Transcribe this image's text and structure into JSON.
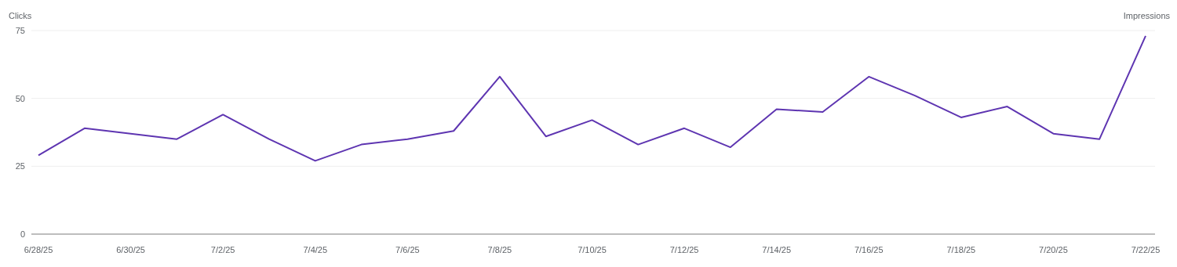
{
  "chart_data": {
    "type": "line",
    "ylabel": "Clicks",
    "y2label": "Impressions",
    "categories": [
      "6/28/25",
      null,
      "6/30/25",
      null,
      "7/2/25",
      null,
      "7/4/25",
      null,
      "7/6/25",
      null,
      "7/8/25",
      null,
      "7/10/25",
      null,
      "7/12/25",
      null,
      "7/14/25",
      null,
      "7/16/25",
      null,
      "7/18/25",
      null,
      "7/20/25",
      null,
      "7/22/25"
    ],
    "series": [
      {
        "color": "#5e35b1",
        "values": [
          29,
          39,
          37,
          35,
          44,
          35,
          27,
          33,
          35,
          38,
          58,
          36,
          42,
          33,
          39,
          32,
          46,
          45,
          58,
          51,
          43,
          47,
          37,
          35,
          73
        ]
      }
    ],
    "ylim": [
      0,
      75
    ],
    "yticks": [
      0,
      25,
      50,
      75
    ],
    "grid": "y",
    "marker": "none",
    "line_style": "solid"
  }
}
